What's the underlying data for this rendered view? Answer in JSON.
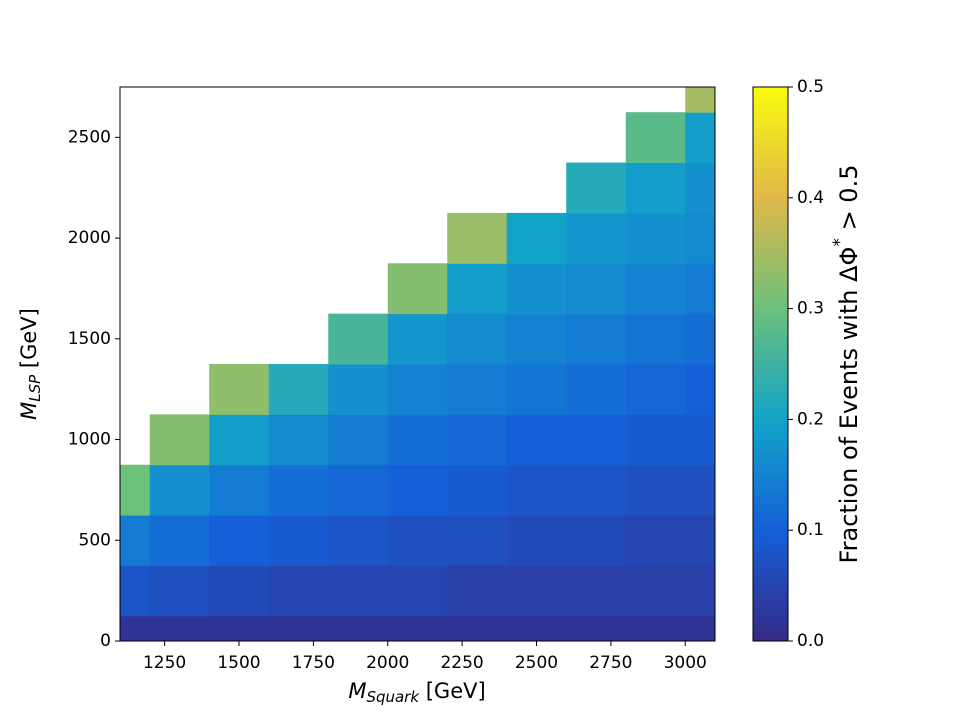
{
  "chart_data": {
    "type": "heatmap",
    "x": [
      1100,
      1300,
      1500,
      1700,
      1900,
      2100,
      2300,
      2500,
      2700,
      2900,
      3100
    ],
    "y": [
      0,
      250,
      500,
      750,
      1000,
      1250,
      1500,
      1750,
      2000,
      2250,
      2500,
      2750
    ],
    "values": [
      [
        0.02,
        0.08,
        0.14,
        0.3,
        null,
        null,
        null,
        null,
        null,
        null,
        null,
        null
      ],
      [
        0.02,
        0.07,
        0.12,
        0.17,
        0.32,
        null,
        null,
        null,
        null,
        null,
        null,
        null
      ],
      [
        0.02,
        0.06,
        0.1,
        0.14,
        0.19,
        0.33,
        null,
        null,
        null,
        null,
        null,
        null
      ],
      [
        0.02,
        0.05,
        0.09,
        0.12,
        0.16,
        0.22,
        null,
        null,
        null,
        null,
        null,
        null
      ],
      [
        0.02,
        0.05,
        0.08,
        0.11,
        0.14,
        0.17,
        0.26,
        null,
        null,
        null,
        null,
        null
      ],
      [
        0.02,
        0.05,
        0.07,
        0.1,
        0.12,
        0.15,
        0.18,
        0.32,
        null,
        null,
        null,
        null
      ],
      [
        0.02,
        0.04,
        0.07,
        0.09,
        0.11,
        0.14,
        0.16,
        0.19,
        0.34,
        null,
        null,
        null
      ],
      [
        0.02,
        0.04,
        0.06,
        0.08,
        0.1,
        0.13,
        0.15,
        0.17,
        0.2,
        null,
        null,
        null
      ],
      [
        0.02,
        0.04,
        0.06,
        0.08,
        0.1,
        0.12,
        0.14,
        0.16,
        0.18,
        0.22,
        null,
        null
      ],
      [
        0.02,
        0.04,
        0.05,
        0.07,
        0.09,
        0.11,
        0.13,
        0.15,
        0.17,
        0.19,
        0.28,
        null
      ],
      [
        0.02,
        0.04,
        0.05,
        0.07,
        0.09,
        0.1,
        0.12,
        0.14,
        0.16,
        0.17,
        0.19,
        0.35
      ]
    ],
    "xlim": [
      1100,
      3100
    ],
    "ylim": [
      0,
      2750
    ],
    "xticks": [
      1250,
      1500,
      1750,
      2000,
      2250,
      2500,
      2750,
      3000
    ],
    "yticks": [
      0,
      500,
      1000,
      1500,
      2000,
      2500
    ],
    "xlabel": {
      "main": "M",
      "sub": "Squark",
      "unit": " [GeV]"
    },
    "ylabel": {
      "main": "M",
      "sub": "LSP",
      "unit": " [GeV]"
    },
    "colorbar": {
      "lim": [
        0,
        0.5
      ],
      "ticks": [
        {
          "value": 0,
          "label": "0.0"
        },
        0.1,
        0.2,
        0.3,
        0.4,
        0.5
      ],
      "label": {
        "main": "Fraction of Events with ΔΦ",
        "sup": "*",
        "rest": " > 0.5"
      }
    },
    "colormap": [
      "#352a87",
      "#1560d8",
      "#12a4c8",
      "#6cc07a",
      "#e0b84a",
      "#f9fb0e"
    ]
  }
}
